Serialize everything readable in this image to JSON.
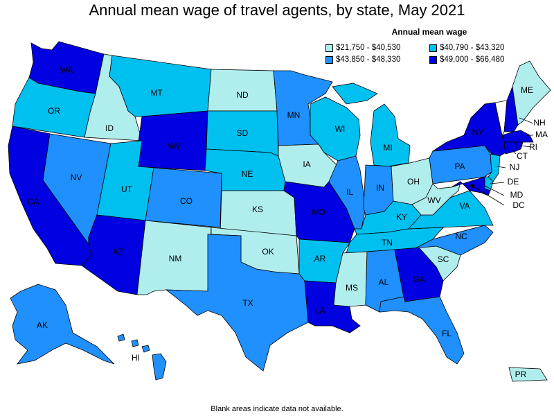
{
  "title": "Annual mean wage of travel agents, by state, May 2021",
  "legend": {
    "title": "Annual mean wage",
    "items": [
      {
        "label": "$21,750 - $40,530",
        "color": "#b0eeee"
      },
      {
        "label": "$40,790 - $43,320",
        "color": "#00c0f0"
      },
      {
        "label": "$43,850 - $48,330",
        "color": "#2090ff"
      },
      {
        "label": "$49,000 - $66,480",
        "color": "#0000e0"
      }
    ]
  },
  "footnote": "Blank areas indicate data not available.",
  "states": {
    "WA": "WA",
    "OR": "OR",
    "CA": "CA",
    "ID": "ID",
    "NV": "NV",
    "MT": "MT",
    "WY": "WY",
    "UT": "UT",
    "AZ": "AZ",
    "CO": "CO",
    "NM": "NM",
    "ND": "ND",
    "SD": "SD",
    "NE": "NE",
    "KS": "KS",
    "OK": "OK",
    "TX": "TX",
    "MN": "MN",
    "IA": "IA",
    "MO": "MO",
    "AR": "AR",
    "LA": "LA",
    "WI": "WI",
    "IL": "IL",
    "MI": "MI",
    "IN": "IN",
    "OH": "OH",
    "KY": "KY",
    "TN": "TN",
    "MS": "MS",
    "AL": "AL",
    "GA": "GA",
    "FL": "FL",
    "SC": "SC",
    "NC": "NC",
    "VA": "VA",
    "WV": "WV",
    "PA": "PA",
    "NY": "NY",
    "ME": "ME",
    "AK": "AK",
    "HI": "HI",
    "PR": "PR",
    "NH": "NH",
    "MA": "MA",
    "RI": "RI",
    "CT": "CT",
    "NJ": "NJ",
    "DE": "DE",
    "MD": "MD",
    "DC": "DC"
  }
}
